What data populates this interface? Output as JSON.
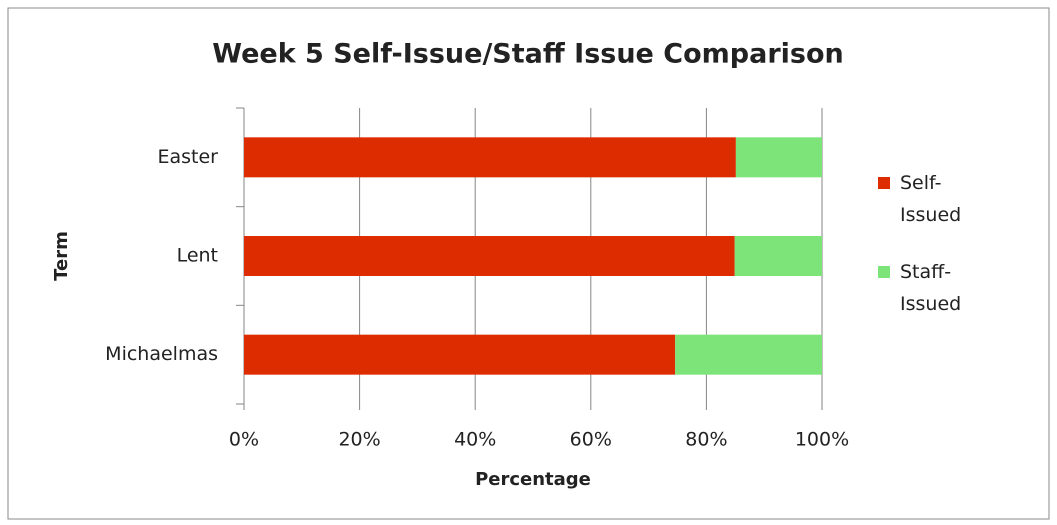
{
  "chart_data": {
    "type": "stacked-bar-horizontal",
    "title": "Week 5 Self-Issue/Staff Issue Comparison",
    "x_label": "Percentage",
    "y_label": "Term",
    "categories": [
      "Michaelmas",
      "Lent",
      "Easter"
    ],
    "series": [
      {
        "name": "Self-Issued",
        "color": "#dc2c00",
        "values": [
          74.6,
          84.9,
          85.1
        ]
      },
      {
        "name": "Staff-Issued",
        "color": "#7de47a",
        "values": [
          25.4,
          15.1,
          14.9
        ]
      }
    ],
    "xlim": [
      0,
      100
    ],
    "xticks": [
      {
        "value": 0,
        "label": "0%"
      },
      {
        "value": 20,
        "label": "20%"
      },
      {
        "value": 40,
        "label": "40%"
      },
      {
        "value": 60,
        "label": "60%"
      },
      {
        "value": 80,
        "label": "80%"
      },
      {
        "value": 100,
        "label": "100%"
      }
    ],
    "grid": true,
    "legend": "right"
  }
}
